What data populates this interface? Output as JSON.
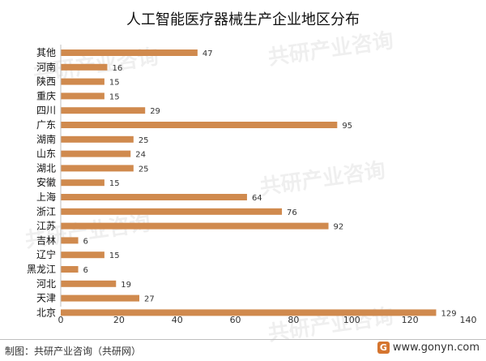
{
  "chart_data": {
    "type": "bar",
    "orientation": "horizontal",
    "title": "人工智能医疗器械生产企业地区分布",
    "categories": [
      "其他",
      "河南",
      "陕西",
      "重庆",
      "四川",
      "广东",
      "湖南",
      "山东",
      "湖北",
      "安徽",
      "上海",
      "浙江",
      "江苏",
      "吉林",
      "辽宁",
      "黑龙江",
      "河北",
      "天津",
      "北京"
    ],
    "values": [
      47,
      16,
      15,
      15,
      29,
      95,
      25,
      24,
      25,
      15,
      64,
      76,
      92,
      6,
      15,
      6,
      19,
      27,
      129
    ],
    "xlim": [
      0,
      140
    ],
    "xticks": [
      0,
      20,
      40,
      60,
      80,
      100,
      120,
      140
    ],
    "grid": false,
    "legend": "none",
    "bar_color": "#d08a4e"
  },
  "footer": {
    "source": "制图：共研产业咨询（共研网）",
    "logo_text": "www.gonyn.com",
    "logo_mark": "G"
  },
  "watermark": {
    "text": "共研产业咨询",
    "url": "www.gonyn.com"
  }
}
